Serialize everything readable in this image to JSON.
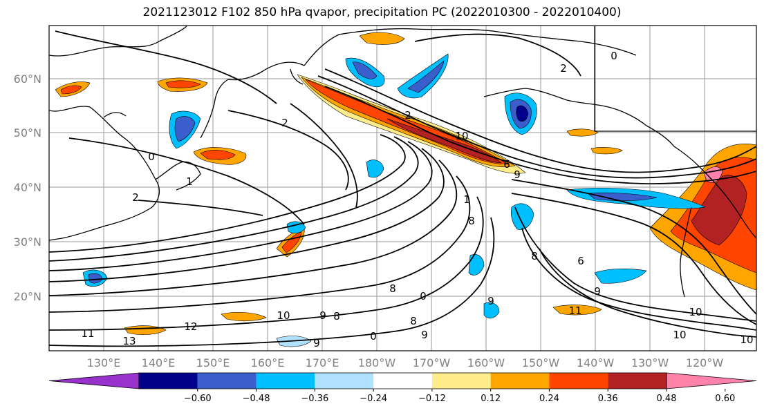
{
  "title": "2021123012 F102 850 hPa qvapor, precipitation PC (2022010300 - 2022010400)",
  "map": {
    "lat_labels": [
      "20°N",
      "30°N",
      "40°N",
      "50°N",
      "60°N"
    ],
    "lon_labels": [
      "130°E",
      "140°E",
      "150°E",
      "160°E",
      "170°E",
      "180°W",
      "170°W",
      "160°W",
      "150°W",
      "140°W",
      "130°W",
      "120°W"
    ],
    "contour_labels": [
      "2",
      "2",
      "1",
      "2",
      "1",
      "0",
      "2",
      "0",
      "0",
      "8",
      "8",
      "9",
      "9",
      "10",
      "11",
      "12",
      "13",
      "10",
      "9",
      "8",
      "9",
      "8",
      "9",
      "6",
      "9",
      "11",
      "10",
      "8",
      "10",
      "10",
      "6",
      "0"
    ]
  },
  "colorbar": {
    "ticks": [
      "−0.60",
      "−0.48",
      "−0.36",
      "−0.24",
      "−0.12",
      "0.12",
      "0.24",
      "0.36",
      "0.48",
      "0.60"
    ],
    "colors": [
      "#9932cc",
      "#00008b",
      "#3a5fcd",
      "#00bfff",
      "#b0e2ff",
      "#ffffff",
      "#ffec8b",
      "#ffa500",
      "#ff4500",
      "#b22222",
      "#ff82ab"
    ]
  }
}
